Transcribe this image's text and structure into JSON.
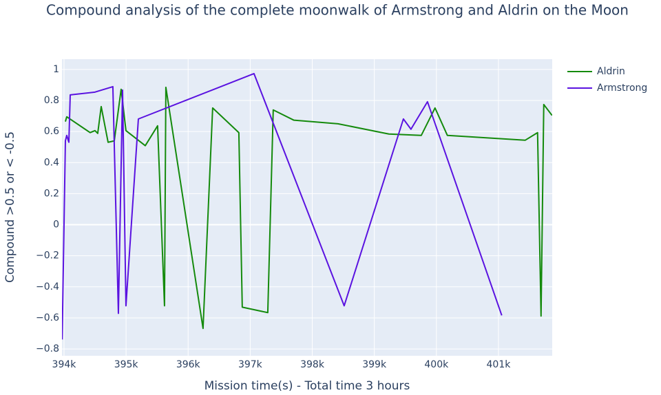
{
  "chart_data": {
    "type": "line",
    "title": "Compound analysis of the complete moonwalk of Armstrong and Aldrin on the Moon",
    "x_label": "Mission time(s) - Total time 3 hours",
    "y_label": "Compound >0.5 or < -0.5",
    "xlim": [
      393967,
      401866
    ],
    "ylim": [
      -0.844,
      1.066
    ],
    "xticks": [
      {
        "value": 394000,
        "label": "394k"
      },
      {
        "value": 395000,
        "label": "395k"
      },
      {
        "value": 396000,
        "label": "396k"
      },
      {
        "value": 397000,
        "label": "397k"
      },
      {
        "value": 398000,
        "label": "398k"
      },
      {
        "value": 399000,
        "label": "399k"
      },
      {
        "value": 400000,
        "label": "400k"
      },
      {
        "value": 401000,
        "label": "401k"
      }
    ],
    "yticks": [
      {
        "value": -0.8,
        "label": "−0.8"
      },
      {
        "value": -0.6,
        "label": "−0.6"
      },
      {
        "value": -0.4,
        "label": "−0.4"
      },
      {
        "value": -0.2,
        "label": "−0.2"
      },
      0,
      0.2,
      0.4,
      0.6,
      0.8,
      1
    ],
    "grid": true,
    "legend": "right",
    "series": [
      {
        "name": "Aldrin",
        "color": "#148a0c",
        "x": [
          394022,
          394044,
          394421,
          394499,
          394543,
          394599,
          394710,
          394810,
          394920,
          394998,
          395309,
          395508,
          395619,
          395641,
          396240,
          396395,
          396817,
          396872,
          397283,
          397371,
          397704,
          398414,
          399234,
          399756,
          399978,
          400177,
          401430,
          401630,
          401686,
          401730,
          401863
        ],
        "values": [
          0.664,
          0.695,
          0.593,
          0.606,
          0.588,
          0.761,
          0.531,
          0.54,
          0.872,
          0.606,
          0.509,
          0.637,
          -0.522,
          0.885,
          -0.668,
          0.752,
          0.593,
          -0.531,
          -0.566,
          0.739,
          0.673,
          0.65,
          0.584,
          0.575,
          0.752,
          0.575,
          0.544,
          0.593,
          -0.588,
          0.774,
          0.704
        ]
      },
      {
        "name": "Armstrong",
        "color": "#5a12e0",
        "x": [
          393970,
          394022,
          394044,
          394078,
          394100,
          394499,
          394787,
          394876,
          394943,
          394998,
          395198,
          397061,
          398514,
          399468,
          399590,
          399856,
          401053
        ],
        "values": [
          -0.739,
          0.54,
          0.575,
          0.531,
          0.836,
          0.854,
          0.889,
          -0.571,
          0.867,
          -0.522,
          0.681,
          0.973,
          -0.522,
          0.681,
          0.615,
          0.792,
          -0.584
        ]
      }
    ]
  }
}
